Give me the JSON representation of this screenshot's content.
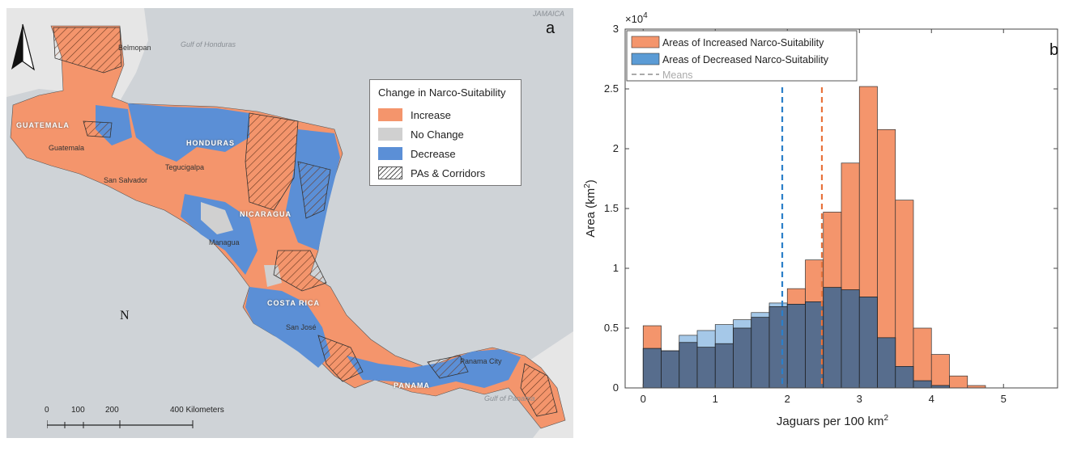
{
  "panel_a": {
    "letter": "a",
    "legend": {
      "title": "Change in Narco-Suitability",
      "items": [
        {
          "label": "Increase",
          "color": "#f4956c"
        },
        {
          "label": "No Change",
          "color": "#d0d0d0"
        },
        {
          "label": "Decrease",
          "color": "#5b8fd6"
        },
        {
          "label": "PAs & Corridors",
          "color": "hatch"
        }
      ]
    },
    "north_label": "N",
    "scale": {
      "ticks": [
        "0",
        "100",
        "200",
        "400 Kilometers"
      ]
    },
    "country_labels": [
      "GUATEMALA",
      "HONDURAS",
      "NICARAGUA",
      "COSTA RICA",
      "PANAMA"
    ],
    "city_labels": [
      "Belmopan",
      "Guatemala",
      "San Salvador",
      "Tegucigalpa",
      "Managua",
      "San José",
      "Panama City"
    ],
    "sea_labels": [
      "Gulf of Honduras",
      "Gulf of Panama",
      "JAMAICA"
    ],
    "colors": {
      "sea": "#cfd3d7",
      "land": "#e6e6e6"
    }
  },
  "panel_b": {
    "letter": "b",
    "exponent_label": "×10",
    "exponent": "4",
    "legend": [
      {
        "label": "Areas of Increased Narco-Suitability",
        "color": "#f4956c"
      },
      {
        "label": "Areas of Decreased Narco-Suitability",
        "color": "#5b9bd5"
      },
      {
        "label": "Means",
        "color": "#aaaaaa"
      }
    ]
  },
  "chart_data": {
    "type": "bar",
    "subtype": "overlapping-histogram",
    "xlabel": "Jaguars per 100 km",
    "xlabel_superscript": "2",
    "ylabel": "Area (km",
    "ylabel_superscript": "2",
    "ylabel_suffix": ")",
    "xlim": [
      -0.25,
      5.75
    ],
    "ylim": [
      0,
      30000
    ],
    "xticks": [
      "0",
      "1",
      "2",
      "3",
      "4",
      "5"
    ],
    "yticks": [
      "0",
      "0.5",
      "1",
      "1.5",
      "2",
      "2.5",
      "3"
    ],
    "y_scale_note": "×10^4",
    "bin_width": 0.25,
    "bin_starts": [
      0,
      0.25,
      0.5,
      0.75,
      1.0,
      1.25,
      1.5,
      1.75,
      2.0,
      2.25,
      2.5,
      2.75,
      3.0,
      3.25,
      3.5,
      3.75,
      4.0,
      4.25,
      4.5
    ],
    "series": [
      {
        "name": "Areas of Increased Narco-Suitability",
        "color": "#f4956c",
        "values": [
          5200,
          3100,
          3800,
          3400,
          3700,
          5000,
          5900,
          6800,
          8300,
          10700,
          14700,
          18800,
          25200,
          21600,
          15700,
          5000,
          2800,
          1000,
          200
        ]
      },
      {
        "name": "Areas of Decreased Narco-Suitability",
        "color": "#5b9bd5",
        "values": [
          3300,
          3100,
          4400,
          4800,
          5300,
          5700,
          6300,
          7100,
          7000,
          7200,
          8400,
          8200,
          7600,
          4200,
          1800,
          600,
          200,
          0,
          0
        ]
      }
    ],
    "means": [
      {
        "series": "Areas of Increased Narco-Suitability",
        "x": 2.48,
        "color": "#e8733c"
      },
      {
        "series": "Areas of Decreased Narco-Suitability",
        "x": 1.93,
        "color": "#2b7fc9"
      }
    ],
    "legend_position": "top-left",
    "grid": false
  }
}
